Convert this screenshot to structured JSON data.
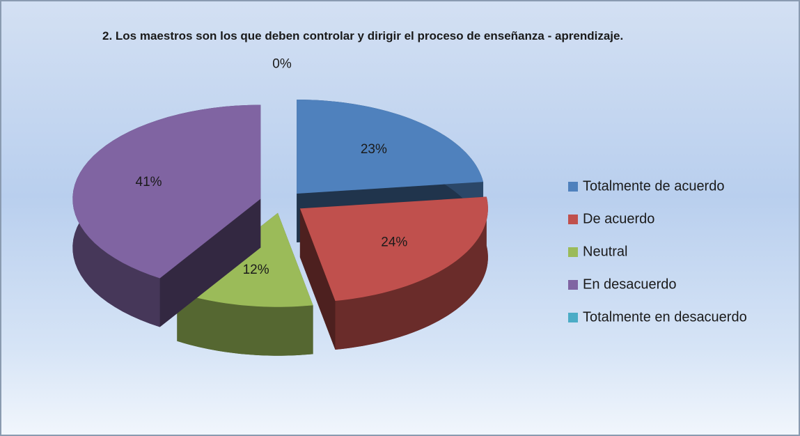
{
  "chart_data": {
    "type": "pie",
    "title": "2. Los maestros son los que deben controlar y dirigir el proceso de enseñanza - aprendizaje.",
    "categories": [
      "Totalmente de acuerdo",
      "De acuerdo",
      "Neutral",
      "En desacuerdo",
      "Totalmente en desacuerdo"
    ],
    "values": [
      23,
      24,
      12,
      41,
      0
    ],
    "value_labels": [
      "23%",
      "24%",
      "12%",
      "41%",
      "0%"
    ],
    "colors": [
      "#4f81bd",
      "#c0504d",
      "#9bbb59",
      "#8064a2",
      "#4bacc6"
    ],
    "legend": "right"
  }
}
